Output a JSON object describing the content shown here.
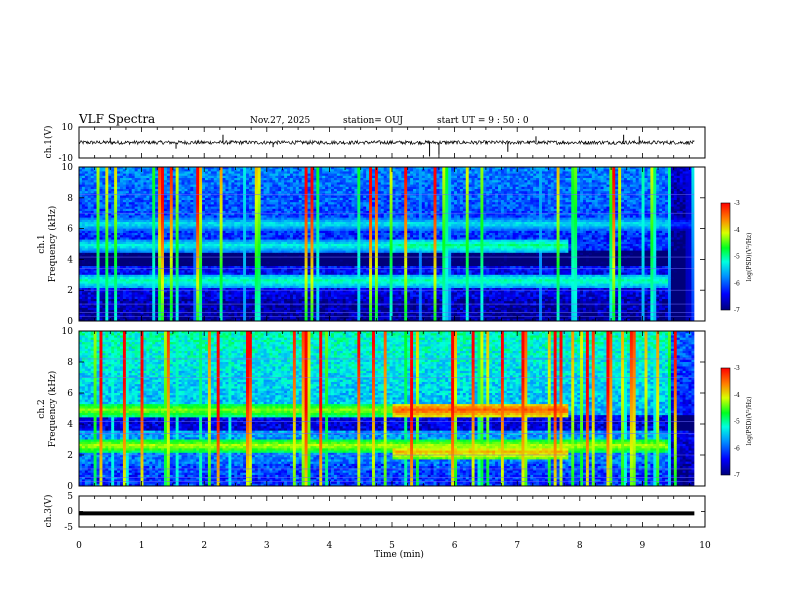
{
  "header": {
    "title": "VLF Spectra",
    "date": "Nov.27, 2025",
    "station": "station= OUJ",
    "start_ut": "start  UT =  9 : 50 : 0"
  },
  "chart_data": [
    {
      "type": "line",
      "name": "ch1-waveform",
      "ylabel": "ch.1(V)",
      "ylim": [
        -10,
        10
      ],
      "tick_labels": [
        "10",
        "-10"
      ],
      "xlim": [
        0,
        9.83
      ],
      "baseline": 0,
      "noise_amplitude": 1.2,
      "spikes": [
        {
          "x": 0.5,
          "y": 3
        },
        {
          "x": 1.55,
          "y": -4
        },
        {
          "x": 2.3,
          "y": 5
        },
        {
          "x": 3.1,
          "y": -3
        },
        {
          "x": 5.6,
          "y": -9
        },
        {
          "x": 5.75,
          "y": -8
        },
        {
          "x": 6.85,
          "y": -6
        },
        {
          "x": 7.3,
          "y": 4
        },
        {
          "x": 8.7,
          "y": 5
        },
        {
          "x": 8.95,
          "y": 4
        }
      ]
    },
    {
      "type": "heatmap",
      "name": "ch1-spectrogram",
      "ylabel": [
        "ch.1",
        "Frequency  (kHz)"
      ],
      "ylim": [
        0,
        10
      ],
      "yticks": [
        "0",
        "2",
        "4",
        "6",
        "8",
        "10"
      ],
      "xlim": [
        0,
        9.83
      ],
      "colorbar": {
        "label": "log(PSD)(V²/Hz)",
        "ticks": [
          "-3",
          "-4",
          "-5",
          "-6",
          "-7"
        ],
        "range": [
          -7,
          -3
        ]
      },
      "bands": [
        {
          "freq": 2.6,
          "level": -5.0,
          "from": 0,
          "to": 9.4
        },
        {
          "freq": 4.9,
          "level": -5.2,
          "from": 0,
          "to": 5.0
        },
        {
          "freq": 4.9,
          "level": -4.9,
          "from": 5.0,
          "to": 7.8
        },
        {
          "freq": 6.3,
          "level": -5.3,
          "from": 0,
          "to": 9.8
        }
      ]
    },
    {
      "type": "heatmap",
      "name": "ch2-spectrogram",
      "ylabel": [
        "ch.2",
        "Frequency  (kHz)"
      ],
      "ylim": [
        0,
        10
      ],
      "yticks": [
        "0",
        "2",
        "4",
        "6",
        "8",
        "10"
      ],
      "xlim": [
        0,
        9.83
      ],
      "colorbar": {
        "label": "log(PSD)(V²/Hz)",
        "ticks": [
          "-3",
          "-4",
          "-5",
          "-6",
          "-7"
        ],
        "range": [
          -7,
          -3
        ]
      },
      "bands": [
        {
          "freq": 2.6,
          "level": -4.2,
          "from": 0,
          "to": 9.4
        },
        {
          "freq": 4.9,
          "level": -4.3,
          "from": 0,
          "to": 5.0
        },
        {
          "freq": 4.9,
          "level": -3.4,
          "from": 5.0,
          "to": 7.8
        },
        {
          "freq": 2.2,
          "level": -3.8,
          "from": 5.0,
          "to": 7.8
        }
      ]
    },
    {
      "type": "line",
      "name": "ch3-waveform",
      "ylabel": "ch.3(V)",
      "ylim": [
        -5,
        5
      ],
      "tick_labels": [
        "5",
        "0",
        "-5"
      ],
      "xlim": [
        0,
        9.83
      ],
      "level": -0.6
    }
  ],
  "xaxis": {
    "label": "Time  (min)",
    "range": [
      0,
      10
    ],
    "ticks": [
      "0",
      "1",
      "2",
      "3",
      "4",
      "5",
      "6",
      "7",
      "8",
      "9",
      "10"
    ]
  }
}
